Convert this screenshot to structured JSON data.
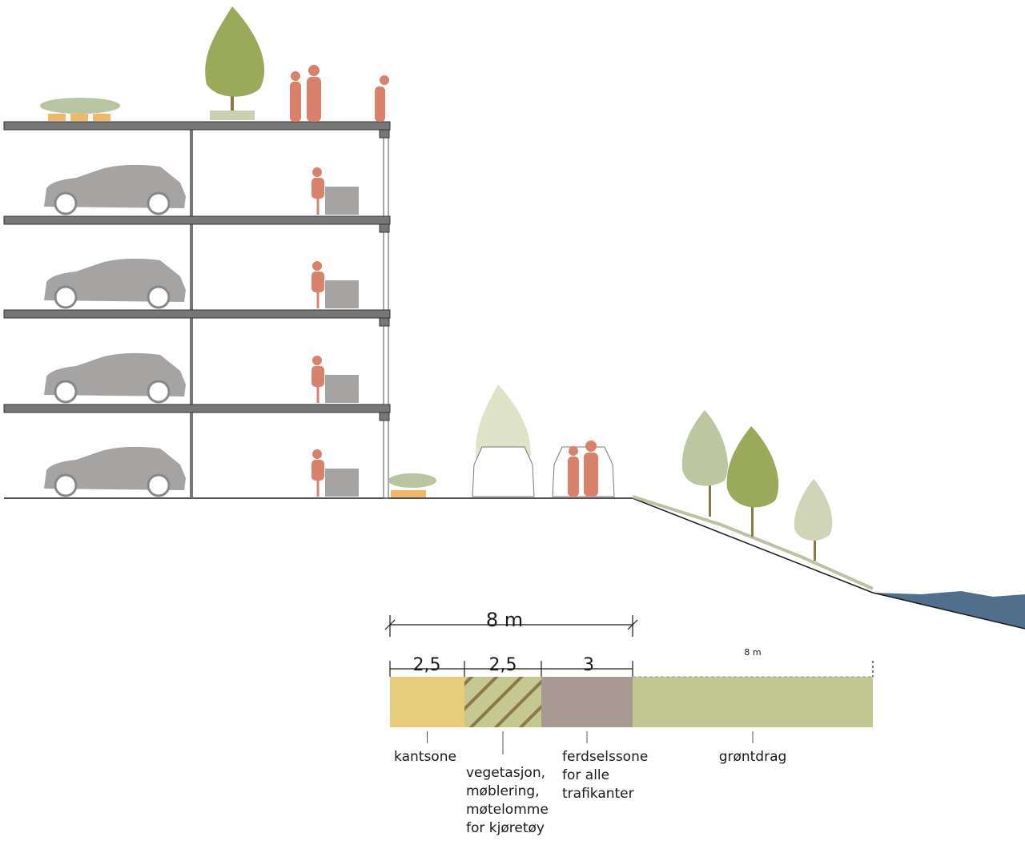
{
  "dimension": {
    "label": "8 m"
  },
  "zones": [
    {
      "width": "2,5",
      "label": [
        "kantsone"
      ]
    },
    {
      "width": "2,5",
      "label": [
        "vegetasjon,",
        "møblering,",
        "møtelomme",
        "for kjøretøy"
      ]
    },
    {
      "width": "3",
      "label": [
        "ferdselssone",
        "for alle",
        "trafikanter"
      ]
    },
    {
      "width": "8 m",
      "label": [
        "grøntdrag"
      ]
    }
  ]
}
